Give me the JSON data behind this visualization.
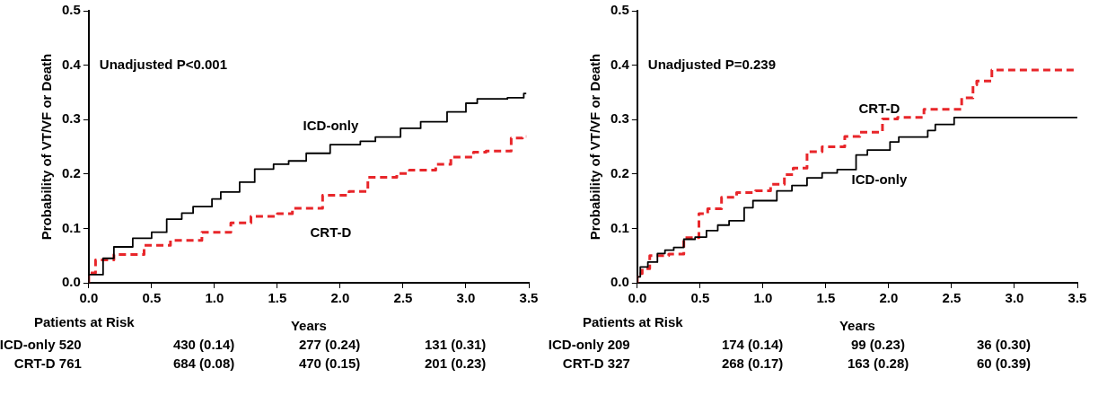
{
  "chart_data": [
    {
      "type": "step",
      "ylabel": "Probability of VT/VF or Death",
      "xlabel": "Years",
      "marker": "none",
      "xlim": [
        0,
        3.5
      ],
      "ylim": [
        0,
        0.5
      ],
      "xticks": [
        {
          "value": 0,
          "label": "0.0"
        },
        0.5,
        {
          "value": 1,
          "label": "1.0"
        },
        1.5,
        {
          "value": 2,
          "label": "2.0"
        },
        2.5,
        {
          "value": 3,
          "label": "3.0"
        },
        3.5
      ],
      "yticks": [
        {
          "value": 0,
          "label": "0.0"
        },
        0.1,
        0.2,
        0.3,
        0.4,
        0.5
      ],
      "annotations": [
        "Unadjusted P<0.001",
        "Patients at Risk",
        "ICD-only 520",
        "430 (0.14)",
        "277 (0.24)",
        "131 (0.31)",
        "CRT-D 761",
        "684 (0.08)",
        "470 (0.15)",
        "201 (0.23)"
      ],
      "series": [
        {
          "name": "ICD-only",
          "color": "#000000",
          "line_style": "solid",
          "x": [
            0,
            0.114,
            0.2,
            0.35,
            0.5,
            0.62,
            0.74,
            0.83,
            0.98,
            1.05,
            1.2,
            1.32,
            1.47,
            1.59,
            1.73,
            1.92,
            2.16,
            2.28,
            2.48,
            2.64,
            2.85,
            3.0,
            3.09,
            3.33,
            3.46,
            3.48
          ],
          "values": [
            0,
            0.015,
            0.045,
            0.066,
            0.082,
            0.093,
            0.117,
            0.128,
            0.14,
            0.154,
            0.167,
            0.185,
            0.209,
            0.218,
            0.224,
            0.238,
            0.254,
            0.26,
            0.268,
            0.284,
            0.296,
            0.314,
            0.33,
            0.338,
            0.34,
            0.348
          ]
        },
        {
          "name": "CRT-D",
          "color": "#e8262a",
          "line_style": "dashed",
          "x": [
            0,
            0.054,
            0.2,
            0.44,
            0.65,
            0.9,
            1.13,
            1.29,
            1.5,
            1.62,
            1.86,
            2.07,
            2.22,
            2.45,
            2.55,
            2.76,
            2.88,
            3.06,
            3.16,
            3.36,
            3.45,
            3.48
          ],
          "values": [
            0,
            0.018,
            0.042,
            0.052,
            0.069,
            0.078,
            0.093,
            0.11,
            0.122,
            0.127,
            0.137,
            0.161,
            0.168,
            0.194,
            0.201,
            0.207,
            0.218,
            0.231,
            0.24,
            0.242,
            0.266,
            0.269
          ]
        }
      ]
    },
    {
      "type": "step",
      "ylabel": "Probability of VT/VF or Death",
      "xlabel": "Years",
      "marker": "none",
      "xlim": [
        0,
        3.5
      ],
      "ylim": [
        0,
        0.5
      ],
      "xticks": [
        {
          "value": 0,
          "label": "0.0"
        },
        0.5,
        {
          "value": 1,
          "label": "1.0"
        },
        1.5,
        {
          "value": 2,
          "label": "2.0"
        },
        2.5,
        {
          "value": 3,
          "label": "3.0"
        },
        3.5
      ],
      "yticks": [
        {
          "value": 0,
          "label": "0.0"
        },
        0.1,
        0.2,
        0.3,
        0.4,
        0.5
      ],
      "annotations": [
        "Unadjusted P=0.239",
        "Patients at Risk",
        "ICD-only 209",
        "174 (0.14)",
        "99 (0.23)",
        "36 (0.30)",
        "CRT-D 327",
        "268 (0.17)",
        "163 (0.28)",
        "60 (0.39)"
      ],
      "series": [
        {
          "name": "ICD-only",
          "color": "#000000",
          "line_style": "solid",
          "x": [
            0,
            0.024,
            0.084,
            0.16,
            0.22,
            0.29,
            0.37,
            0.46,
            0.55,
            0.64,
            0.73,
            0.85,
            0.92,
            1.11,
            1.23,
            1.35,
            1.47,
            1.59,
            1.74,
            1.83,
            2.01,
            2.08,
            2.31,
            2.37,
            2.52,
            2.71,
            3.5
          ],
          "values": [
            0,
            0.011,
            0.029,
            0.038,
            0.054,
            0.06,
            0.065,
            0.08,
            0.084,
            0.096,
            0.106,
            0.114,
            0.138,
            0.151,
            0.169,
            0.179,
            0.193,
            0.202,
            0.208,
            0.235,
            0.244,
            0.259,
            0.268,
            0.28,
            0.291,
            0.304,
            0.304
          ]
        },
        {
          "name": "CRT-D",
          "color": "#e8262a",
          "line_style": "dashed",
          "x": [
            0,
            0.039,
            0.099,
            0.25,
            0.37,
            0.49,
            0.56,
            0.67,
            0.79,
            0.94,
            1.06,
            1.17,
            1.24,
            1.35,
            1.47,
            1.65,
            1.77,
            1.95,
            2.07,
            2.28,
            2.37,
            2.58,
            2.67,
            2.7,
            2.82,
            3.0,
            3.5
          ],
          "values": [
            0,
            0.017,
            0.026,
            0.05,
            0.053,
            0.083,
            0.127,
            0.136,
            0.157,
            0.166,
            0.169,
            0.181,
            0.199,
            0.211,
            0.241,
            0.25,
            0.269,
            0.277,
            0.301,
            0.304,
            0.319,
            0.319,
            0.34,
            0.364,
            0.371,
            0.391,
            0.391
          ]
        }
      ]
    }
  ]
}
